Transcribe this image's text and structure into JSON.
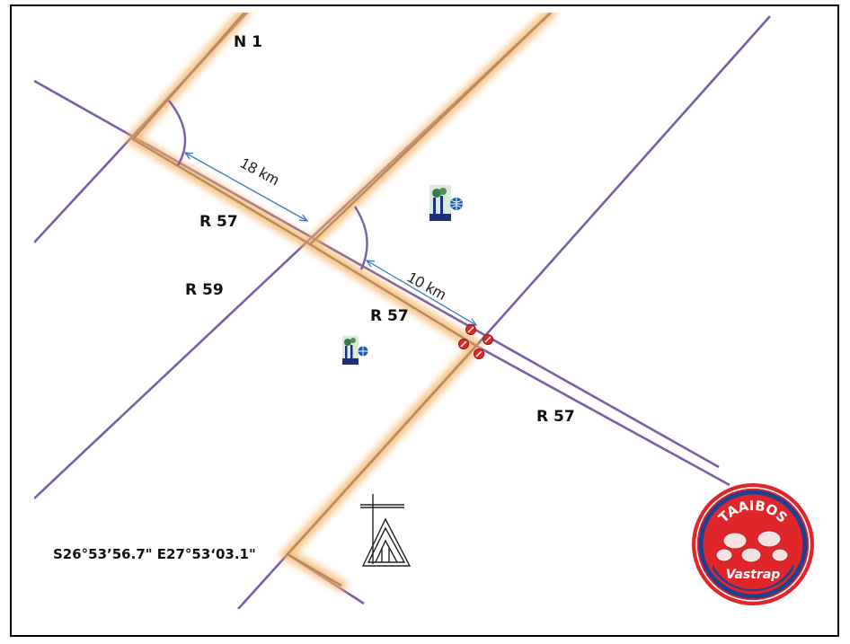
{
  "labels": {
    "n1": "N 1",
    "r57_a": "R 57",
    "r59": "R 59",
    "r57_b": "R 57",
    "r57_c": "R 57"
  },
  "distances": {
    "d1": "18 km",
    "d2": "10 km"
  },
  "coordinates": "S26°53’56.7\" E27°53‘03.1\"",
  "logo": {
    "top_text": "TAAIBOS",
    "bottom_text": "Vastrap"
  },
  "colors": {
    "road": "#7a5fa8",
    "highlight": "#f5b060",
    "highlight_core": "#b98a5c",
    "measure": "#3a78c0",
    "logo_red": "#e0262a",
    "logo_blue": "#1f3f8f"
  },
  "icons": [
    "factory-icon",
    "factory-icon",
    "church-icon",
    "traffic-light-icon"
  ]
}
